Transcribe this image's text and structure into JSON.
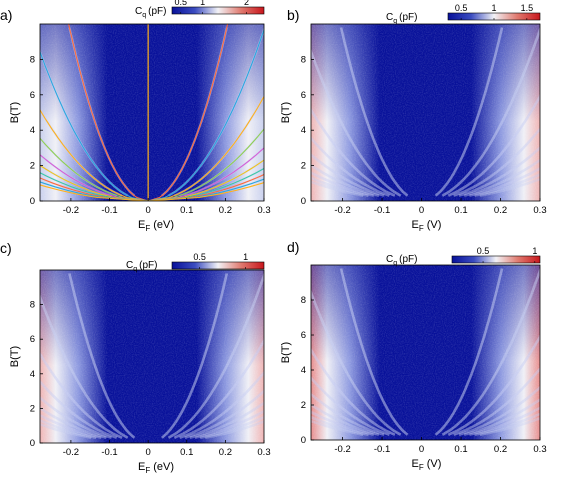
{
  "colors": {
    "low": "#08119a",
    "mid": "#f2f2f6",
    "high": "#c8161c",
    "fan": "#5e6fd8",
    "fringe": "#e3a1a1"
  },
  "fit_line_colors": [
    "#ff6a3d",
    "#2aa8e0",
    "#ffb11b",
    "#8fd14f",
    "#d65cd6",
    "#f0c419",
    "#3bc9a5"
  ],
  "chart_data": [
    {
      "panel": "a)",
      "type": "heatmap",
      "xlabel_main": "E",
      "xlabel_sub": "F",
      "xlabel_unit": "(eV)",
      "ylabel": "B(T)",
      "xlim": [
        -0.28,
        0.3
      ],
      "ylim": [
        0,
        10
      ],
      "xticks": [
        "-0.2",
        "-0.1",
        "0",
        "0.1",
        "0.2",
        "0.3"
      ],
      "xtick_values": [
        -0.2,
        -0.1,
        0,
        0.1,
        0.2,
        0.3
      ],
      "yticks": [
        "0",
        "2",
        "4",
        "6",
        "8"
      ],
      "ytick_values": [
        0,
        2,
        4,
        6,
        8
      ],
      "colorbar": {
        "label_main": "C",
        "label_sub": "q",
        "label_unit": "(pF)",
        "ticks": [
          "0.5",
          "1",
          "2"
        ],
        "tick_values": [
          0.5,
          1,
          2
        ],
        "range": [
          0.3,
          2.4
        ]
      },
      "overlay_fits": true
    },
    {
      "panel": "b)",
      "type": "heatmap",
      "xlabel_main": "E",
      "xlabel_sub": "F",
      "xlabel_unit": "(V)",
      "ylabel": "B(T)",
      "xlim": [
        -0.28,
        0.3
      ],
      "ylim": [
        0,
        10
      ],
      "xticks": [
        "-0.2",
        "-0.1",
        "0",
        "0.1",
        "0.2",
        "0.3"
      ],
      "xtick_values": [
        -0.2,
        -0.1,
        0,
        0.1,
        0.2,
        0.3
      ],
      "yticks": [
        "0",
        "2",
        "4",
        "6",
        "8"
      ],
      "ytick_values": [
        0,
        2,
        4,
        6,
        8
      ],
      "colorbar": {
        "label_main": "C",
        "label_sub": "q",
        "label_unit": "(pF)",
        "ticks": [
          "0.5",
          "1",
          "1.5"
        ],
        "tick_values": [
          0.5,
          1,
          1.5
        ],
        "range": [
          0.3,
          1.7
        ]
      },
      "overlay_fits": false
    },
    {
      "panel": "c)",
      "type": "heatmap",
      "xlabel_main": "E",
      "xlabel_sub": "F",
      "xlabel_unit": "(eV)",
      "ylabel": "B(T)",
      "xlim": [
        -0.28,
        0.3
      ],
      "ylim": [
        0,
        10
      ],
      "xticks": [
        "-0.2",
        "-0.1",
        "0",
        "0.1",
        "0.2",
        "0.3"
      ],
      "xtick_values": [
        -0.2,
        -0.1,
        0,
        0.1,
        0.2,
        0.3
      ],
      "yticks": [
        "0",
        "2",
        "4",
        "6",
        "8"
      ],
      "ytick_values": [
        0,
        2,
        4,
        6,
        8
      ],
      "colorbar": {
        "label_main": "C",
        "label_sub": "q",
        "label_unit": "(pF)",
        "ticks": [
          "0.5",
          "1"
        ],
        "tick_values": [
          0.5,
          1
        ],
        "range": [
          0.2,
          1.2
        ]
      },
      "overlay_fits": false
    },
    {
      "panel": "d)",
      "type": "heatmap",
      "xlabel_main": "E",
      "xlabel_sub": "F",
      "xlabel_unit": "(V)",
      "ylabel": "B(T)",
      "xlim": [
        -0.28,
        0.3
      ],
      "ylim": [
        0,
        10
      ],
      "xticks": [
        "-0.2",
        "-0.1",
        "0",
        "0.1",
        "0.2",
        "0.3"
      ],
      "xtick_values": [
        -0.2,
        -0.1,
        0,
        0.1,
        0.2,
        0.3
      ],
      "yticks": [
        "0",
        "2",
        "4",
        "6",
        "8"
      ],
      "ytick_values": [
        0,
        2,
        4,
        6,
        8
      ],
      "colorbar": {
        "label_main": "C",
        "label_sub": "q",
        "label_unit": "(pF)",
        "ticks": [
          "0.5",
          "1"
        ],
        "tick_values": [
          0.5,
          1
        ],
        "range": [
          0.2,
          1.05
        ]
      },
      "overlay_fits": false
    }
  ]
}
